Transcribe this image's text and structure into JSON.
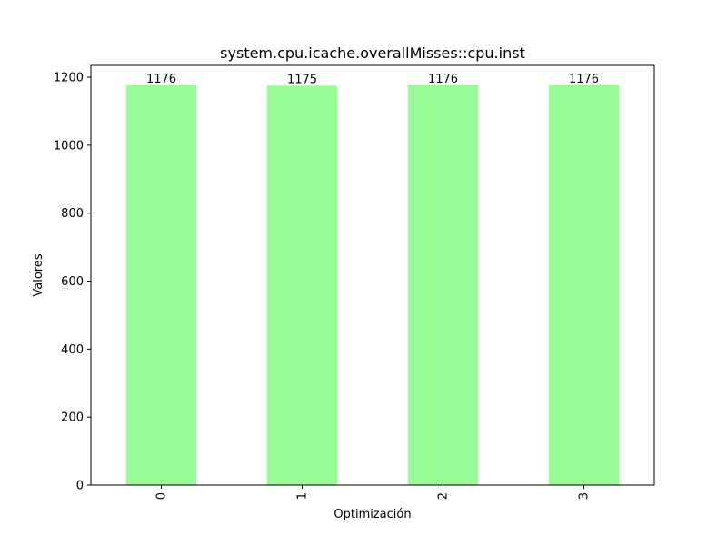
{
  "chart_data": {
    "type": "bar",
    "title": "system.cpu.icache.overallMisses::cpu.inst",
    "xlabel": "Optimización",
    "ylabel": "Valores",
    "categories": [
      "0",
      "1",
      "2",
      "3"
    ],
    "values": [
      1176,
      1175,
      1176,
      1176
    ],
    "data_labels": [
      "1176",
      "1175",
      "1176",
      "1176"
    ],
    "yticks": [
      0,
      200,
      400,
      600,
      800,
      1000,
      1200
    ],
    "ylim": [
      0,
      1234.8
    ],
    "bar_color": "#98fb98",
    "grid": false,
    "legend": "none",
    "x_tick_rotation": "vertical"
  }
}
